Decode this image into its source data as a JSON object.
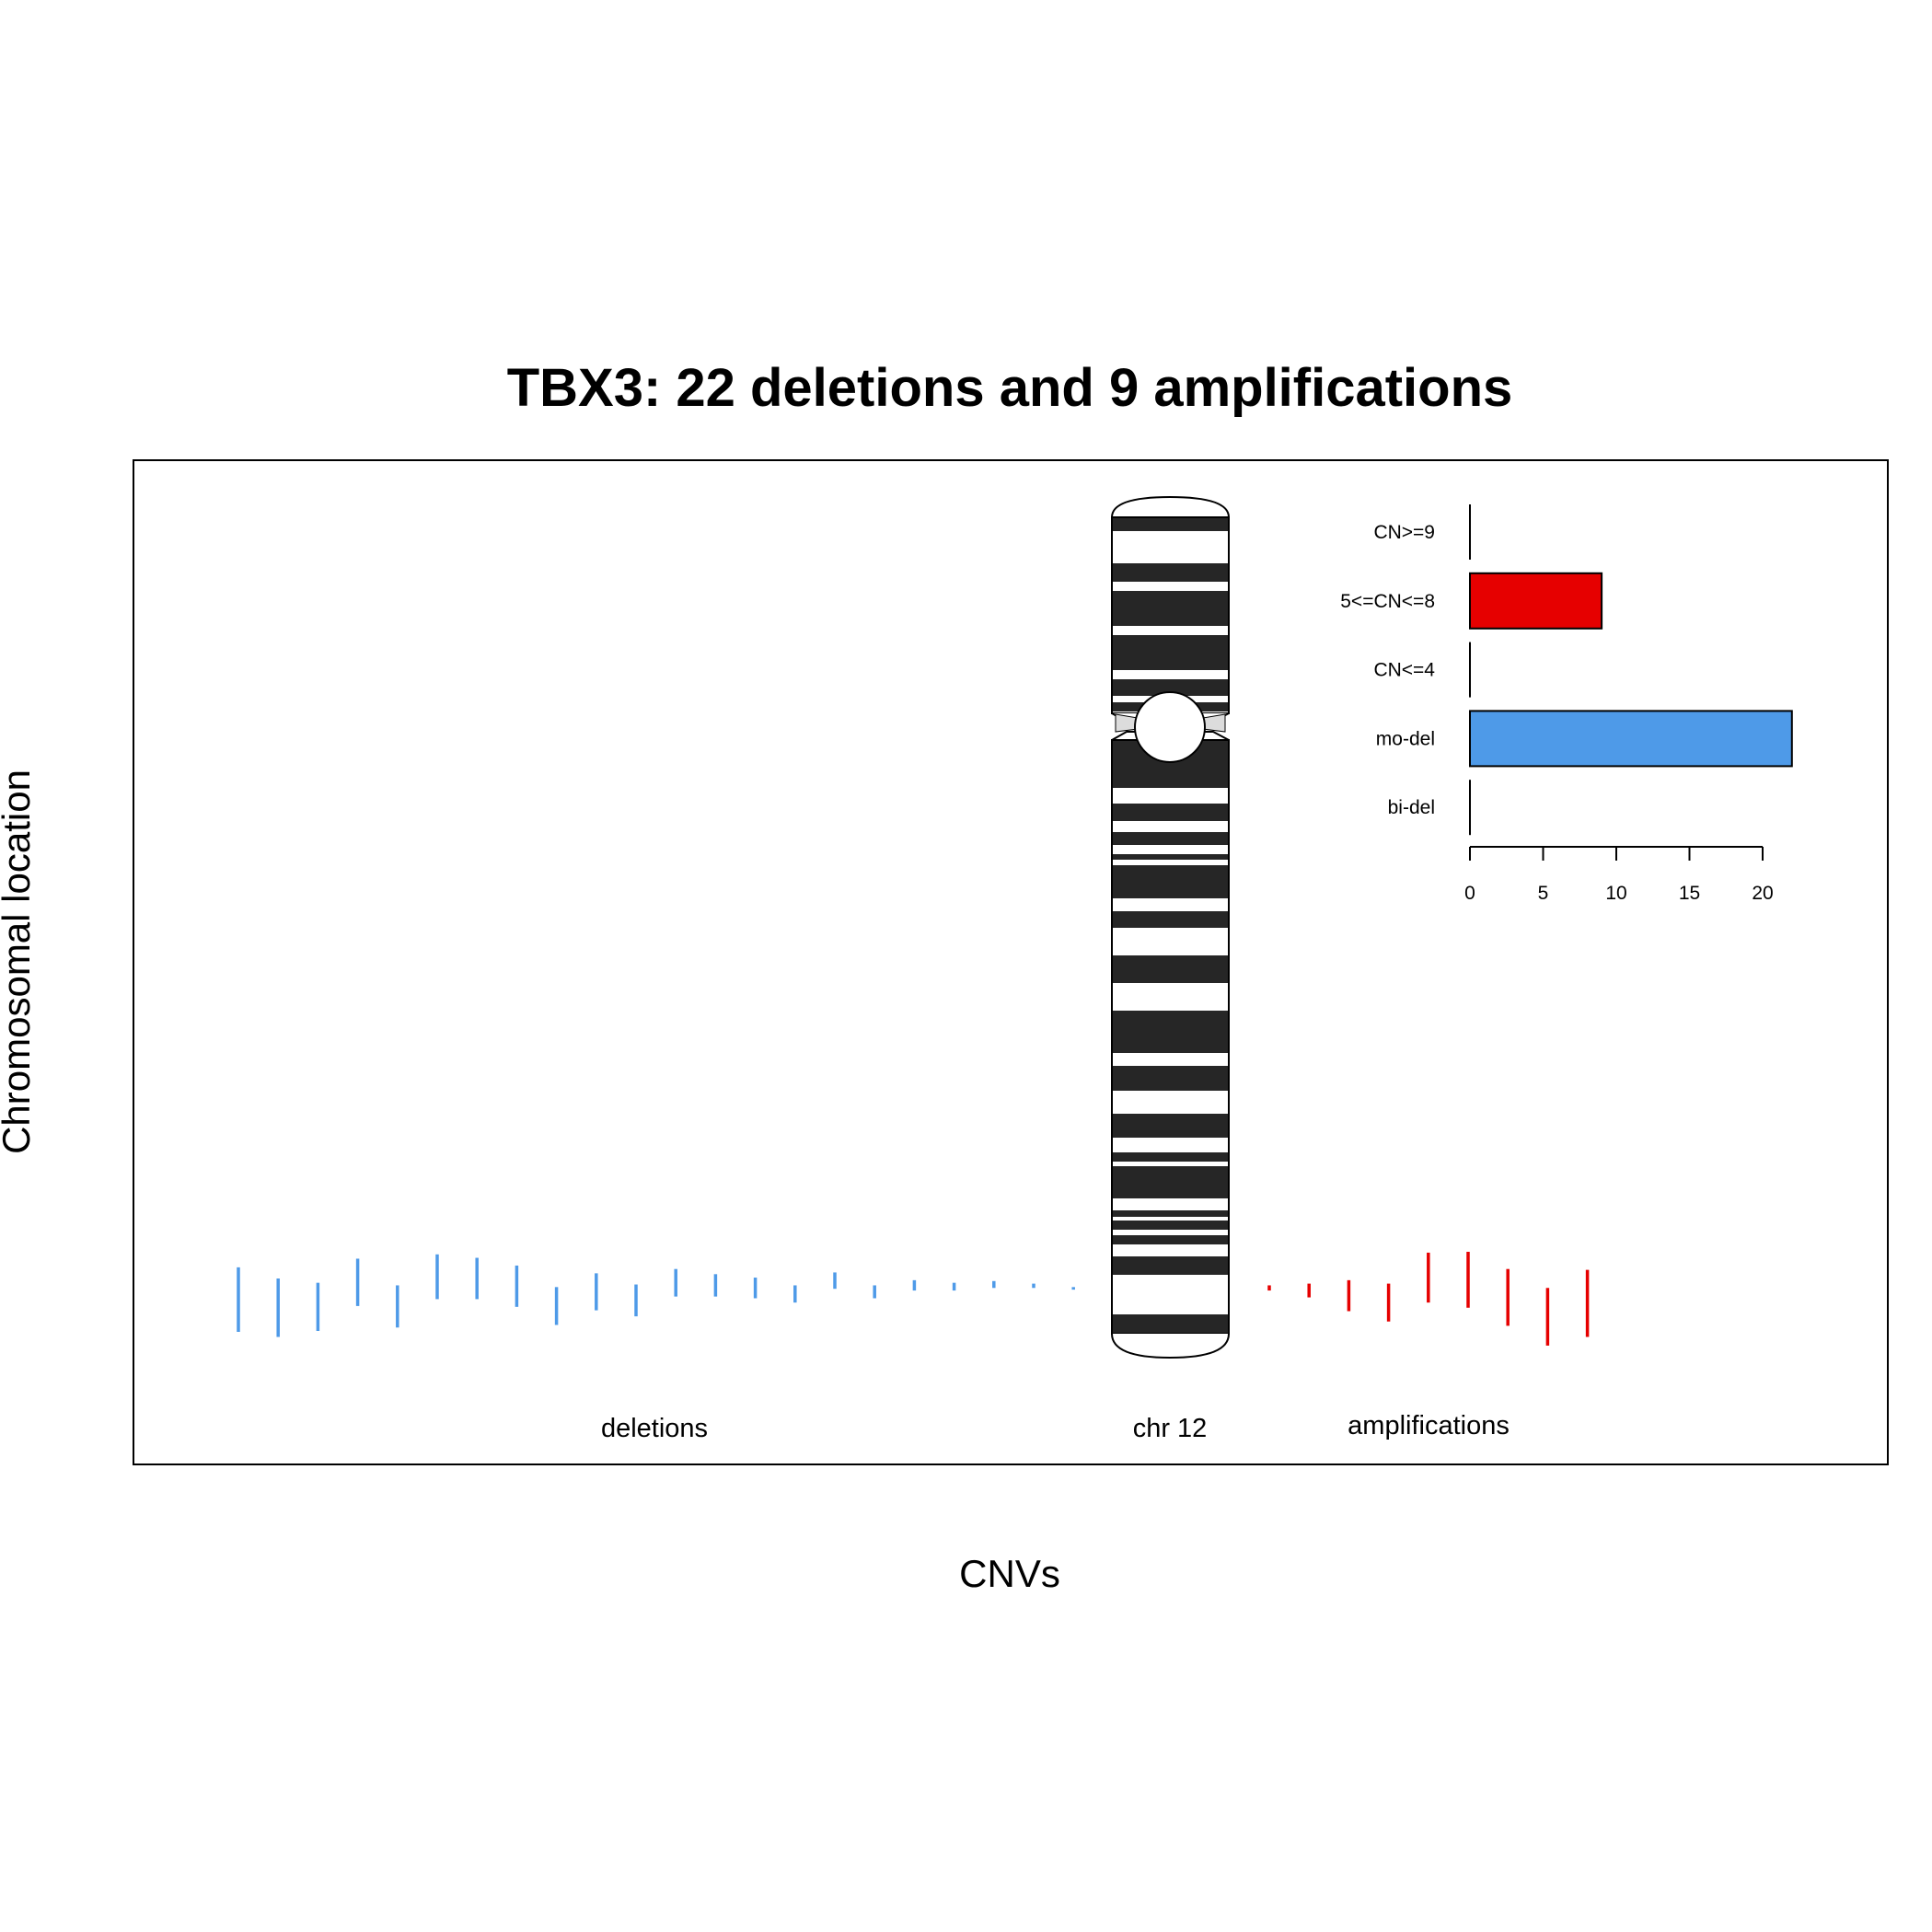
{
  "chart_data": [
    {
      "type": "scatter",
      "title": "TBX3: 22 deletions and 9 amplifications",
      "xlabel": "CNVs",
      "ylabel": "Chromosomal location",
      "chromosome_label": "chr 12",
      "group_labels": {
        "deletions": "deletions",
        "amplifications": "amplifications"
      },
      "colors": {
        "deletion": "#4e9ae8",
        "amplification": "#e60000",
        "band_dark": "#262626",
        "band_light": "#ffffff"
      },
      "deletion_segments": [
        {
          "start": 0.895,
          "end": 0.97
        },
        {
          "start": 0.908,
          "end": 0.976
        },
        {
          "start": 0.913,
          "end": 0.969
        },
        {
          "start": 0.885,
          "end": 0.94
        },
        {
          "start": 0.916,
          "end": 0.965
        },
        {
          "start": 0.88,
          "end": 0.932
        },
        {
          "start": 0.884,
          "end": 0.932
        },
        {
          "start": 0.893,
          "end": 0.941
        },
        {
          "start": 0.918,
          "end": 0.962
        },
        {
          "start": 0.902,
          "end": 0.945
        },
        {
          "start": 0.915,
          "end": 0.952
        },
        {
          "start": 0.897,
          "end": 0.929
        },
        {
          "start": 0.903,
          "end": 0.929
        },
        {
          "start": 0.907,
          "end": 0.931
        },
        {
          "start": 0.916,
          "end": 0.936
        },
        {
          "start": 0.901,
          "end": 0.92
        },
        {
          "start": 0.916,
          "end": 0.931
        },
        {
          "start": 0.91,
          "end": 0.922
        },
        {
          "start": 0.913,
          "end": 0.922
        },
        {
          "start": 0.911,
          "end": 0.919
        },
        {
          "start": 0.914,
          "end": 0.919
        },
        {
          "start": 0.918,
          "end": 0.921
        }
      ],
      "amplification_segments": [
        {
          "start": 0.916,
          "end": 0.922
        },
        {
          "start": 0.914,
          "end": 0.93
        },
        {
          "start": 0.91,
          "end": 0.946
        },
        {
          "start": 0.914,
          "end": 0.958
        },
        {
          "start": 0.878,
          "end": 0.936
        },
        {
          "start": 0.877,
          "end": 0.942
        },
        {
          "start": 0.897,
          "end": 0.963
        },
        {
          "start": 0.919,
          "end": 0.986
        },
        {
          "start": 0.898,
          "end": 0.976
        }
      ],
      "centromere_fraction": 0.262
    },
    {
      "type": "bar",
      "orientation": "horizontal",
      "categories": [
        "CN>=9",
        "5<=CN<=8",
        "CN<=4",
        "mo-del",
        "bi-del"
      ],
      "values": [
        0,
        9,
        0,
        22,
        0
      ],
      "colors": [
        "#e60000",
        "#e60000",
        "#e60000",
        "#4e9ae8",
        "#4e9ae8"
      ],
      "xlim": [
        0,
        22
      ],
      "xticks": [
        0,
        5,
        10,
        15,
        20
      ]
    }
  ]
}
